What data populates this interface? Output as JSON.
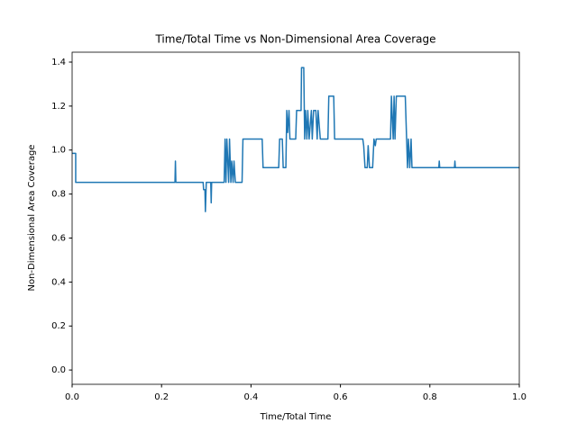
{
  "chart_data": {
    "type": "line",
    "title": "Time/Total Time vs Non-Dimensional Area Coverage",
    "xlabel": "Time/Total Time",
    "ylabel": "Non-Dimensional Area Coverage",
    "xlim": [
      0,
      1
    ],
    "ylim": [
      -0.065,
      1.445
    ],
    "xticks": [
      {
        "value": 0,
        "label": "0.0"
      },
      0.2,
      0.4,
      0.6,
      0.8,
      {
        "value": 1,
        "label": "1.0"
      }
    ],
    "yticks": [
      {
        "value": 0,
        "label": "0.0"
      },
      0.2,
      0.4,
      0.6,
      0.8,
      {
        "value": 1,
        "label": "1.0"
      },
      1.2,
      1.4
    ],
    "x": [
      0,
      0.008,
      0.008,
      0.23,
      0.231,
      0.232,
      0.293,
      0.294,
      0.297,
      0.298,
      0.3,
      0.31,
      0.311,
      0.312,
      0.34,
      0.342,
      0.344,
      0.346,
      0.35,
      0.352,
      0.355,
      0.357,
      0.36,
      0.362,
      0.365,
      0.38,
      0.382,
      0.425,
      0.427,
      0.462,
      0.464,
      0.47,
      0.472,
      0.478,
      0.48,
      0.482,
      0.485,
      0.487,
      0.5,
      0.502,
      0.512,
      0.513,
      0.518,
      0.52,
      0.522,
      0.525,
      0.527,
      0.53,
      0.535,
      0.537,
      0.54,
      0.545,
      0.548,
      0.55,
      0.555,
      0.56,
      0.565,
      0.572,
      0.574,
      0.585,
      0.587,
      0.65,
      0.652,
      0.655,
      0.66,
      0.662,
      0.665,
      0.672,
      0.675,
      0.678,
      0.68,
      0.712,
      0.714,
      0.718,
      0.72,
      0.722,
      0.725,
      0.745,
      0.748,
      0.75,
      0.752,
      0.755,
      0.758,
      0.76,
      0.762,
      0.82,
      0.821,
      0.822,
      0.855,
      0.856,
      0.857,
      1.0
    ],
    "series": [
      {
        "color": "#1f77b4",
        "values": [
          0.985,
          0.985,
          0.853,
          0.853,
          0.95,
          0.853,
          0.853,
          0.82,
          0.82,
          0.72,
          0.853,
          0.853,
          0.76,
          0.853,
          0.853,
          1.05,
          0.853,
          1.05,
          0.853,
          1.05,
          0.853,
          0.95,
          0.853,
          0.95,
          0.853,
          0.853,
          1.05,
          1.05,
          0.92,
          0.92,
          1.05,
          1.05,
          0.92,
          0.92,
          1.18,
          1.08,
          1.18,
          1.05,
          1.05,
          1.18,
          1.18,
          1.375,
          1.375,
          1.05,
          1.18,
          1.05,
          1.18,
          1.05,
          1.18,
          1.05,
          1.18,
          1.18,
          1.05,
          1.18,
          1.05,
          1.05,
          1.05,
          1.05,
          1.245,
          1.245,
          1.05,
          1.05,
          1.02,
          0.92,
          0.92,
          1.02,
          0.92,
          0.92,
          1.05,
          1.02,
          1.05,
          1.05,
          1.245,
          1.05,
          1.245,
          1.05,
          1.245,
          1.245,
          1.05,
          0.92,
          1.05,
          0.92,
          1.05,
          0.92,
          0.92,
          0.92,
          0.95,
          0.92,
          0.92,
          0.95,
          0.92,
          0.92
        ]
      }
    ]
  }
}
